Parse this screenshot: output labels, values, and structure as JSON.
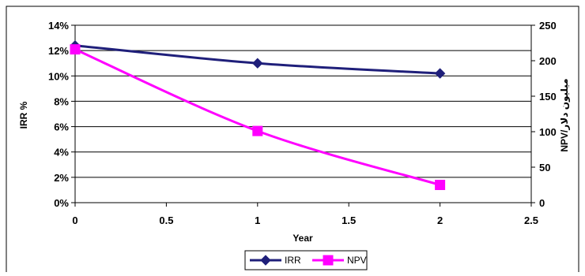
{
  "chart_data": {
    "type": "line",
    "xlabel": "Year",
    "ylabel_left": "IRR %",
    "ylabel_right": "NPV/میلیون دلار",
    "xlim": [
      0,
      2.5
    ],
    "ylim_left": [
      0,
      14
    ],
    "ylim_right": [
      0,
      250
    ],
    "x_ticks": [
      "0",
      "0.5",
      "1",
      "1.5",
      "2",
      "2.5"
    ],
    "y_left_ticks": [
      "0%",
      "2%",
      "4%",
      "6%",
      "8%",
      "10%",
      "12%",
      "14%"
    ],
    "y_right_ticks": [
      "0",
      "50",
      "100",
      "150",
      "200",
      "250"
    ],
    "grid": true,
    "legend_position": "bottom",
    "series": [
      {
        "name": "IRR",
        "axis": "left",
        "color": "#1f1f7a",
        "marker": "diamond",
        "x": [
          0,
          1,
          2
        ],
        "y": [
          12.4,
          11.0,
          10.2
        ]
      },
      {
        "name": "NPV",
        "axis": "right",
        "color": "#ff00ff",
        "marker": "square",
        "x": [
          0,
          1,
          2
        ],
        "y": [
          216,
          101,
          25
        ]
      }
    ]
  }
}
